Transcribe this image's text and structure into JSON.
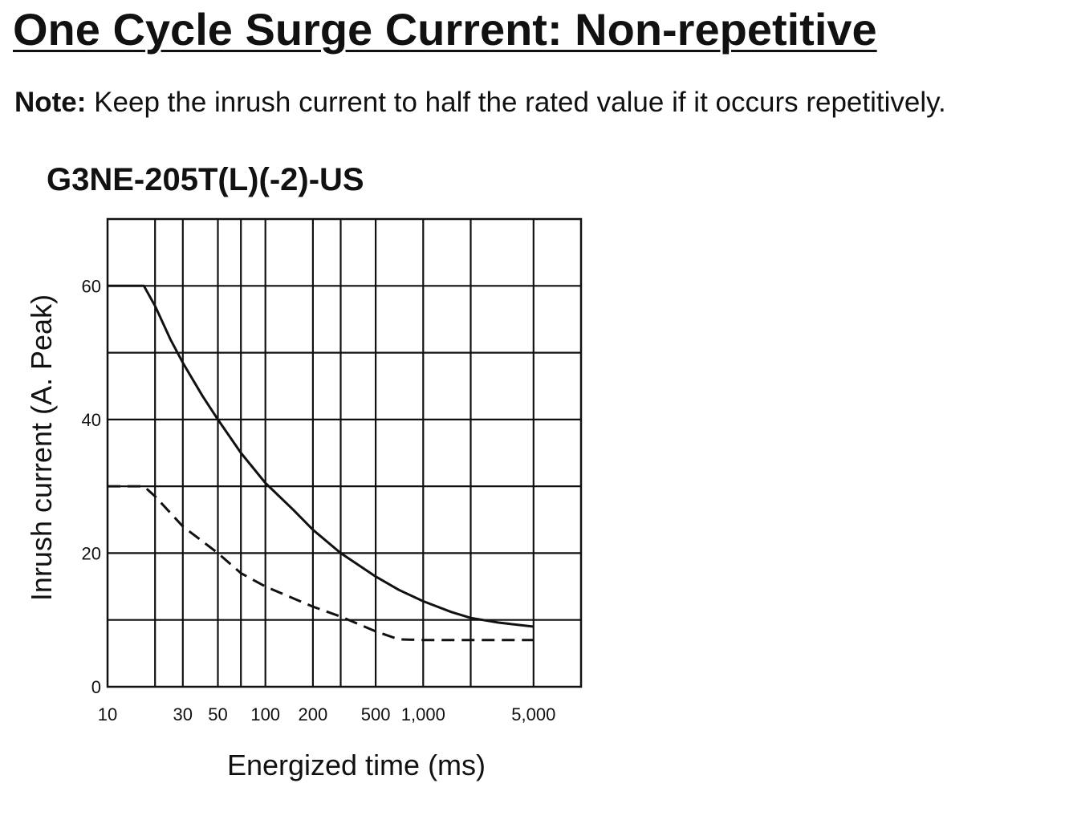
{
  "heading": {
    "title": "One Cycle Surge Current: Non-repetitive",
    "note_label": "Note:",
    "note_text": "Keep the inrush current to half the rated value if it occurs repetitively."
  },
  "chart_data": {
    "type": "line",
    "title": "G3NE-205T(L)(-2)-US",
    "xlabel": "Energized time (ms)",
    "ylabel": "Inrush current (A. Peak)",
    "xscale": "log",
    "xlim": [
      10,
      10000
    ],
    "ylim": [
      0,
      70
    ],
    "grid": true,
    "x_ticks": [
      {
        "value": 10,
        "label": "10"
      },
      {
        "value": 30,
        "label": "30"
      },
      {
        "value": 50,
        "label": "50"
      },
      {
        "value": 100,
        "label": "100"
      },
      {
        "value": 200,
        "label": "200"
      },
      {
        "value": 500,
        "label": "500"
      },
      {
        "value": 1000,
        "label": "1,000"
      },
      {
        "value": 5000,
        "label": "5,000"
      }
    ],
    "x_gridlines": [
      20,
      30,
      50,
      70,
      100,
      200,
      300,
      500,
      1000,
      2000,
      5000
    ],
    "y_ticks": [
      {
        "value": 0,
        "label": "0"
      },
      {
        "value": 20,
        "label": "20"
      },
      {
        "value": 40,
        "label": "40"
      },
      {
        "value": 60,
        "label": "60"
      }
    ],
    "y_gridlines": [
      10,
      20,
      30,
      40,
      50,
      60
    ],
    "series": [
      {
        "style": "solid",
        "x": [
          10,
          17,
          20,
          25,
          30,
          40,
          50,
          70,
          100,
          150,
          200,
          300,
          500,
          700,
          1000,
          1500,
          2000,
          3000,
          5000
        ],
        "y": [
          60,
          60,
          57,
          52,
          48.5,
          43.5,
          40,
          35,
          30.5,
          26.5,
          23.5,
          20,
          16.5,
          14.5,
          12.8,
          11.2,
          10.3,
          9.6,
          9
        ]
      },
      {
        "style": "dashed",
        "x": [
          10,
          17,
          20,
          30,
          50,
          70,
          100,
          200,
          300,
          500,
          700,
          1000,
          2000,
          5000
        ],
        "y": [
          30,
          30,
          28.5,
          24,
          20,
          17,
          15,
          12,
          10.5,
          8.3,
          7.1,
          7,
          7,
          7
        ]
      }
    ]
  }
}
